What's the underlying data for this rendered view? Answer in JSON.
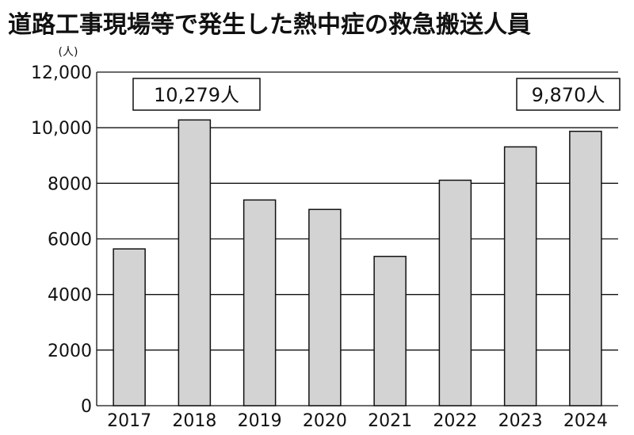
{
  "chart_data": {
    "type": "bar",
    "title": "道路工事現場等で発生した熱中症の救急搬送人員",
    "unit": "(人)",
    "categories": [
      "2017",
      "2018",
      "2019",
      "2020",
      "2021",
      "2022",
      "2023",
      "2024"
    ],
    "values": [
      5640,
      10279,
      7400,
      7060,
      5370,
      8110,
      9310,
      9870
    ],
    "ylim": [
      0,
      12000
    ],
    "yticks": [
      "0",
      "2000",
      "4000",
      "6000",
      "8000",
      "10,000",
      "12,000"
    ],
    "callouts": [
      {
        "category_index": 1,
        "text": "10,279人"
      },
      {
        "category_index": 7,
        "text": "9,870人"
      }
    ],
    "grid": true,
    "colors": {
      "bar_fill": "#d3d3d3",
      "bar_stroke": "#111111",
      "grid": "#111111"
    }
  }
}
